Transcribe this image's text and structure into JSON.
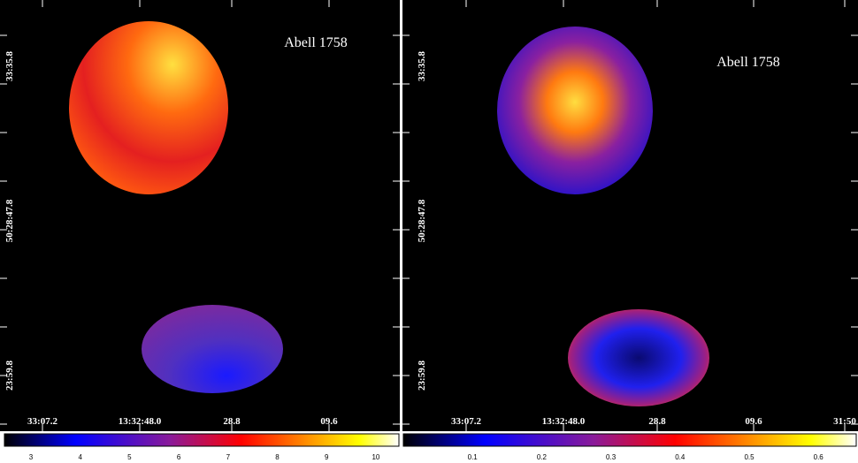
{
  "panels": [
    {
      "title": "Abell 1758",
      "y_labels": [
        "33:35.8",
        "50:28:47.8",
        "23:59.8"
      ],
      "x_labels": [
        "33:07.2",
        "13:32:48.0",
        "28.8",
        "09.6"
      ],
      "colorbar_ticks": [
        3,
        4,
        5,
        6,
        7,
        8,
        9,
        10
      ]
    },
    {
      "title": "Abell 1758",
      "y_labels": [
        "33:35.8",
        "50:28:47.8",
        "23:59.8"
      ],
      "x_labels": [
        "33:07.2",
        "13:32:48.0",
        "28.8",
        "09.6",
        "31:50"
      ],
      "colorbar_ticks": [
        0.1,
        0.2,
        0.3,
        0.4,
        0.5,
        0.6
      ]
    }
  ]
}
